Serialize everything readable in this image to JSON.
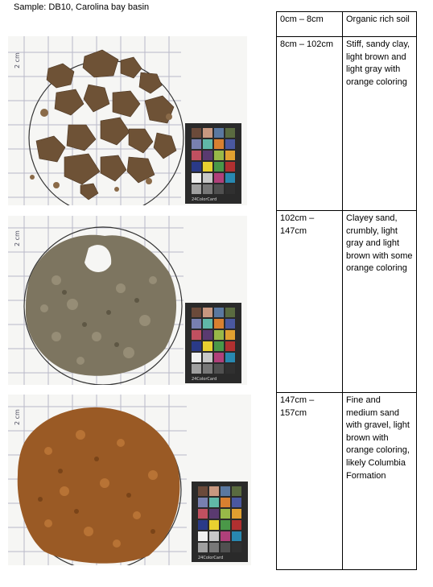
{
  "document": {
    "title": "Sample:  DB10, Carolina bay basin"
  },
  "photos": [
    {
      "label": "soil-photo-8-102cm",
      "soil_color": "#6e5236",
      "color_card_text": "24ColorCard"
    },
    {
      "label": "soil-photo-102-147cm",
      "soil_color": "#7d7560",
      "color_card_text": "24ColorCard"
    },
    {
      "label": "soil-photo-147-157cm",
      "soil_color": "#9a5a25",
      "color_card_text": "24ColorCard"
    }
  ],
  "layers": [
    {
      "depth": "0cm – 8cm",
      "description": "Organic rich soil"
    },
    {
      "depth": "8cm – 102cm",
      "description": "Stiff, sandy clay, light brown and light gray with orange coloring"
    },
    {
      "depth": "102cm – 147cm",
      "description": "Clayey sand, crumbly, light gray and light brown with some orange coloring"
    },
    {
      "depth": "147cm – 157cm",
      "description": "Fine and medium sand with gravel, light brown with orange coloring, likely Columbia Formation"
    }
  ],
  "colors": {
    "grid_line": "#b8b8c8",
    "circle": "#333333",
    "card_bg": "#2a2a2a"
  }
}
